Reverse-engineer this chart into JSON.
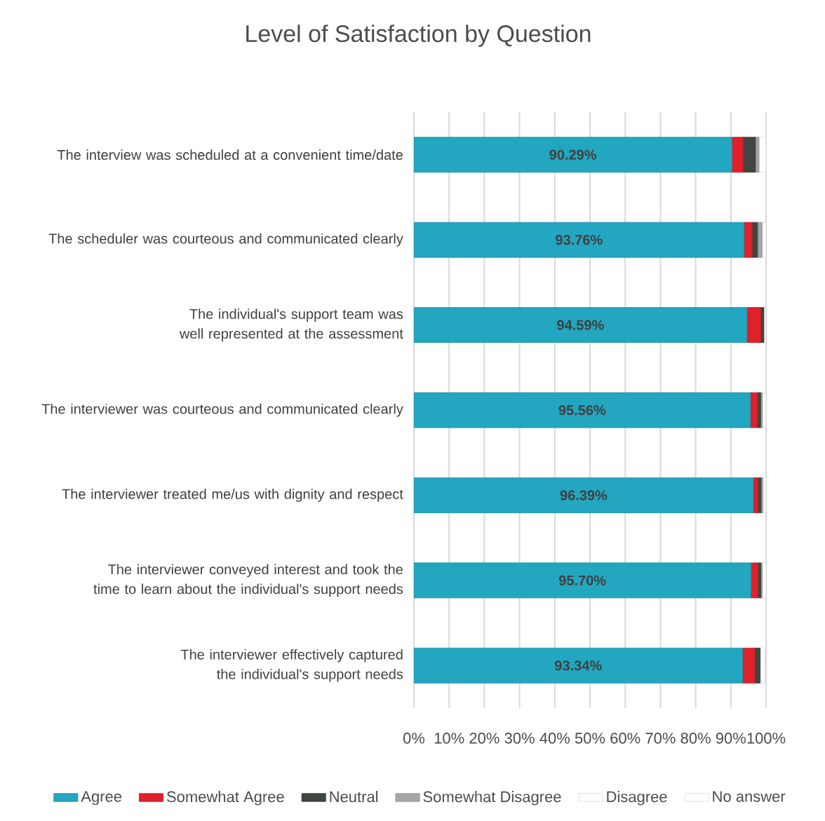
{
  "chart_data": {
    "type": "bar",
    "orientation": "horizontal",
    "stacked": true,
    "title": "Level of Satisfaction by Question",
    "categories": [
      "The interview was scheduled at a convenient time/date",
      "The scheduler was courteous and communicated clearly",
      "The individual's support team was well represented at the assessment",
      "The interviewer was courteous and communicated clearly",
      "The interviewer treated me/us with dignity and respect",
      "The interviewer conveyed interest and took the time to learn about the individual's support needs",
      "The interviewer effectively captured the individual's support needs"
    ],
    "series": [
      {
        "name": "Agree",
        "color": "#23a6bf",
        "values": [
          90.29,
          93.76,
          94.59,
          95.56,
          96.39,
          95.7,
          93.34
        ],
        "value_labels": [
          "90.29%",
          "93.76%",
          "94.59%",
          "95.56%",
          "96.39%",
          "95.70%",
          "93.34%"
        ]
      },
      {
        "name": "Somewhat Agree",
        "color": "#e0202a",
        "values": [
          3.2,
          2.3,
          3.9,
          2.0,
          1.3,
          2.0,
          3.5
        ]
      },
      {
        "name": "Neutral",
        "color": "#404640",
        "values": [
          3.5,
          1.5,
          0.9,
          0.9,
          0.9,
          0.8,
          1.5
        ]
      },
      {
        "name": "Somewhat Disagree",
        "color": "#a6a6a6",
        "values": [
          1.0,
          1.3,
          null,
          0.5,
          0.5,
          0.4,
          null
        ]
      },
      {
        "name": "Disagree",
        "color": "#ffffff",
        "values": [
          2.0,
          1.1,
          null,
          1.0,
          0.9,
          1.1,
          1.3
        ]
      },
      {
        "name": "No answer",
        "color": "#ffffff",
        "values": [
          0,
          0,
          0,
          0,
          0,
          0,
          0
        ]
      }
    ],
    "xlim": [
      0,
      100
    ],
    "xticks": [
      {
        "value": 0,
        "label": "0%"
      },
      {
        "value": 10,
        "label": "10%"
      },
      {
        "value": 20,
        "label": "20%"
      },
      {
        "value": 30,
        "label": "30%"
      },
      {
        "value": 40,
        "label": "40%"
      },
      {
        "value": 50,
        "label": "50%"
      },
      {
        "value": 60,
        "label": "60%"
      },
      {
        "value": 70,
        "label": "70%"
      },
      {
        "value": 80,
        "label": "80%"
      },
      {
        "value": 90,
        "label": "90%"
      },
      {
        "value": 100,
        "label": "100%"
      }
    ],
    "grid": "x",
    "legend": "bottom"
  }
}
